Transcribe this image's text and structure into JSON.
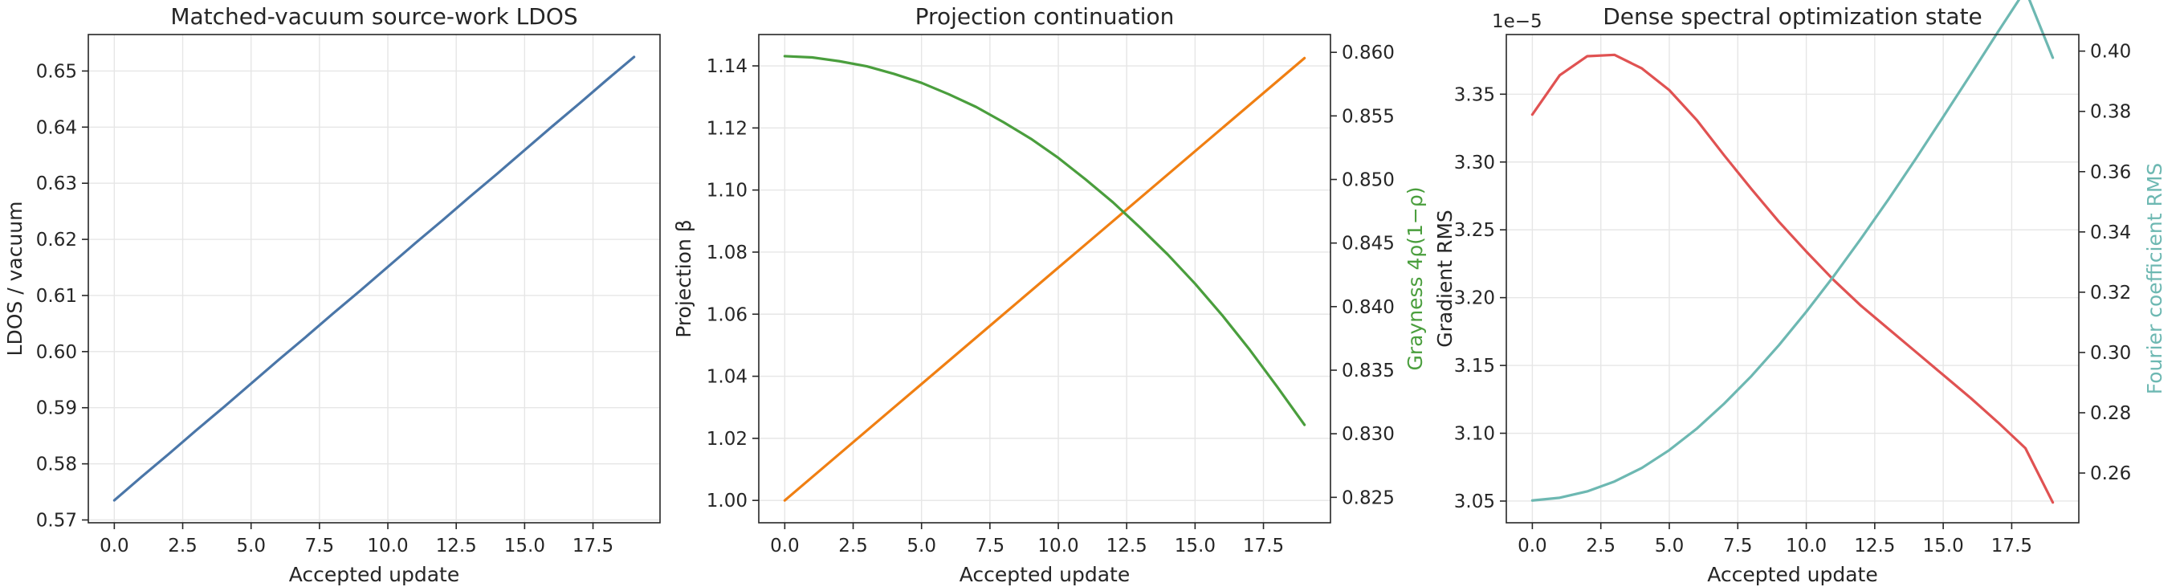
{
  "chart_data": [
    {
      "type": "line",
      "title": "Matched-vacuum source-work LDOS",
      "xlabel": "Accepted update",
      "ylabel": "LDOS / vacuum",
      "xlim": [
        -0.95,
        19.95
      ],
      "ylim": [
        0.5695,
        0.6565
      ],
      "xticks": [
        "0.0",
        "2.5",
        "5.0",
        "7.5",
        "10.0",
        "12.5",
        "15.0",
        "17.5"
      ],
      "yticks": [
        "0.57",
        "0.58",
        "0.59",
        "0.60",
        "0.61",
        "0.62",
        "0.63",
        "0.64",
        "0.65"
      ],
      "grid": true,
      "x": [
        0,
        1,
        2,
        3,
        4,
        5,
        6,
        7,
        8,
        9,
        10,
        11,
        12,
        13,
        14,
        15,
        16,
        16.9999,
        18,
        19
      ],
      "series": [
        {
          "axis": "left",
          "color": "#4a76a8",
          "values": [
            0.5735,
            0.5777,
            0.5818,
            0.586,
            0.5901,
            0.5943,
            0.5985,
            0.6026,
            0.6068,
            0.6109,
            0.6151,
            0.6193,
            0.6234,
            0.6276,
            0.6317,
            0.6359,
            0.6401,
            0.6442,
            0.6484,
            0.6525
          ]
        }
      ]
    },
    {
      "type": "line",
      "title": "Projection continuation",
      "xlabel": "Accepted update",
      "ylabel": "Projection β",
      "y2label": "Grayness 4ρ(1−ρ)",
      "y2label_color": "#4a9e3d",
      "xlim": [
        -0.95,
        19.95
      ],
      "ylim": [
        0.9928,
        1.1501
      ],
      "y2lim": [
        0.823,
        0.8614
      ],
      "xticks": [
        "0.0",
        "2.5",
        "5.0",
        "7.5",
        "10.0",
        "12.5",
        "15.0",
        "17.5"
      ],
      "yticks": [
        "1.00",
        "1.02",
        "1.04",
        "1.06",
        "1.08",
        "1.10",
        "1.12",
        "1.14"
      ],
      "y2ticks": [
        "0.825",
        "0.830",
        "0.835",
        "0.840",
        "0.845",
        "0.850",
        "0.855",
        "0.860"
      ],
      "grid": true,
      "x": [
        0,
        1,
        2,
        3,
        4,
        5,
        6,
        7,
        8,
        9,
        10,
        11,
        12,
        13,
        14,
        15,
        16,
        17,
        18,
        19
      ],
      "series": [
        {
          "axis": "left",
          "color": "#f07f12",
          "values": [
            1.0,
            1.0075,
            1.015,
            1.0225,
            1.03,
            1.0375,
            1.045,
            1.0525,
            1.06,
            1.0675,
            1.075,
            1.0825,
            1.09,
            1.0975,
            1.105,
            1.1125,
            1.12,
            1.1275,
            1.135,
            1.1425
          ]
        },
        {
          "axis": "right",
          "color": "#4a9e3d",
          "values": [
            0.8597,
            0.8596,
            0.8593,
            0.8589,
            0.8583,
            0.8576,
            0.8567,
            0.8557,
            0.8545,
            0.8532,
            0.8517,
            0.85,
            0.8482,
            0.8462,
            0.8441,
            0.8418,
            0.8393,
            0.8366,
            0.8337,
            0.8307
          ]
        }
      ]
    },
    {
      "type": "line",
      "title": "Dense spectral optimization state",
      "xlabel": "Accepted update",
      "ylabel": "Gradient RMS",
      "y2label": "Fourier coefficient RMS",
      "y2label_color": "#6db8b2",
      "offset_label": "1e−5",
      "xlim": [
        -0.95,
        19.95
      ],
      "ylim": [
        3.034,
        3.394
      ],
      "y2lim": [
        0.2435,
        0.4055
      ],
      "xticks": [
        "0.0",
        "2.5",
        "5.0",
        "7.5",
        "10.0",
        "12.5",
        "15.0",
        "17.5"
      ],
      "yticks": [
        "3.05",
        "3.10",
        "3.15",
        "3.20",
        "3.25",
        "3.30",
        "3.35"
      ],
      "y2ticks": [
        "0.26",
        "0.28",
        "0.30",
        "0.32",
        "0.34",
        "0.36",
        "0.38",
        "0.40"
      ],
      "grid": true,
      "x": [
        0,
        1,
        2,
        3,
        4,
        5,
        6,
        7,
        8,
        9,
        10,
        11,
        12,
        13,
        14,
        15,
        16,
        17,
        18,
        19
      ],
      "series": [
        {
          "axis": "left",
          "color": "#e05252",
          "values": [
            3.335,
            3.364,
            3.378,
            3.379,
            3.369,
            3.353,
            3.331,
            3.305,
            3.28,
            3.256,
            3.234,
            3.213,
            3.194,
            3.177,
            3.16,
            3.143,
            3.126,
            3.108,
            3.089,
            3.049
          ]
        },
        {
          "axis": "right",
          "color": "#6db8b2",
          "values": [
            0.2509,
            0.2518,
            0.2539,
            0.2572,
            0.2617,
            0.2676,
            0.2747,
            0.283,
            0.2922,
            0.3024,
            0.3135,
            0.3253,
            0.3378,
            0.3508,
            0.3643,
            0.3782,
            0.3922,
            0.4064,
            0.4203,
            0.3978
          ]
        }
      ]
    }
  ]
}
